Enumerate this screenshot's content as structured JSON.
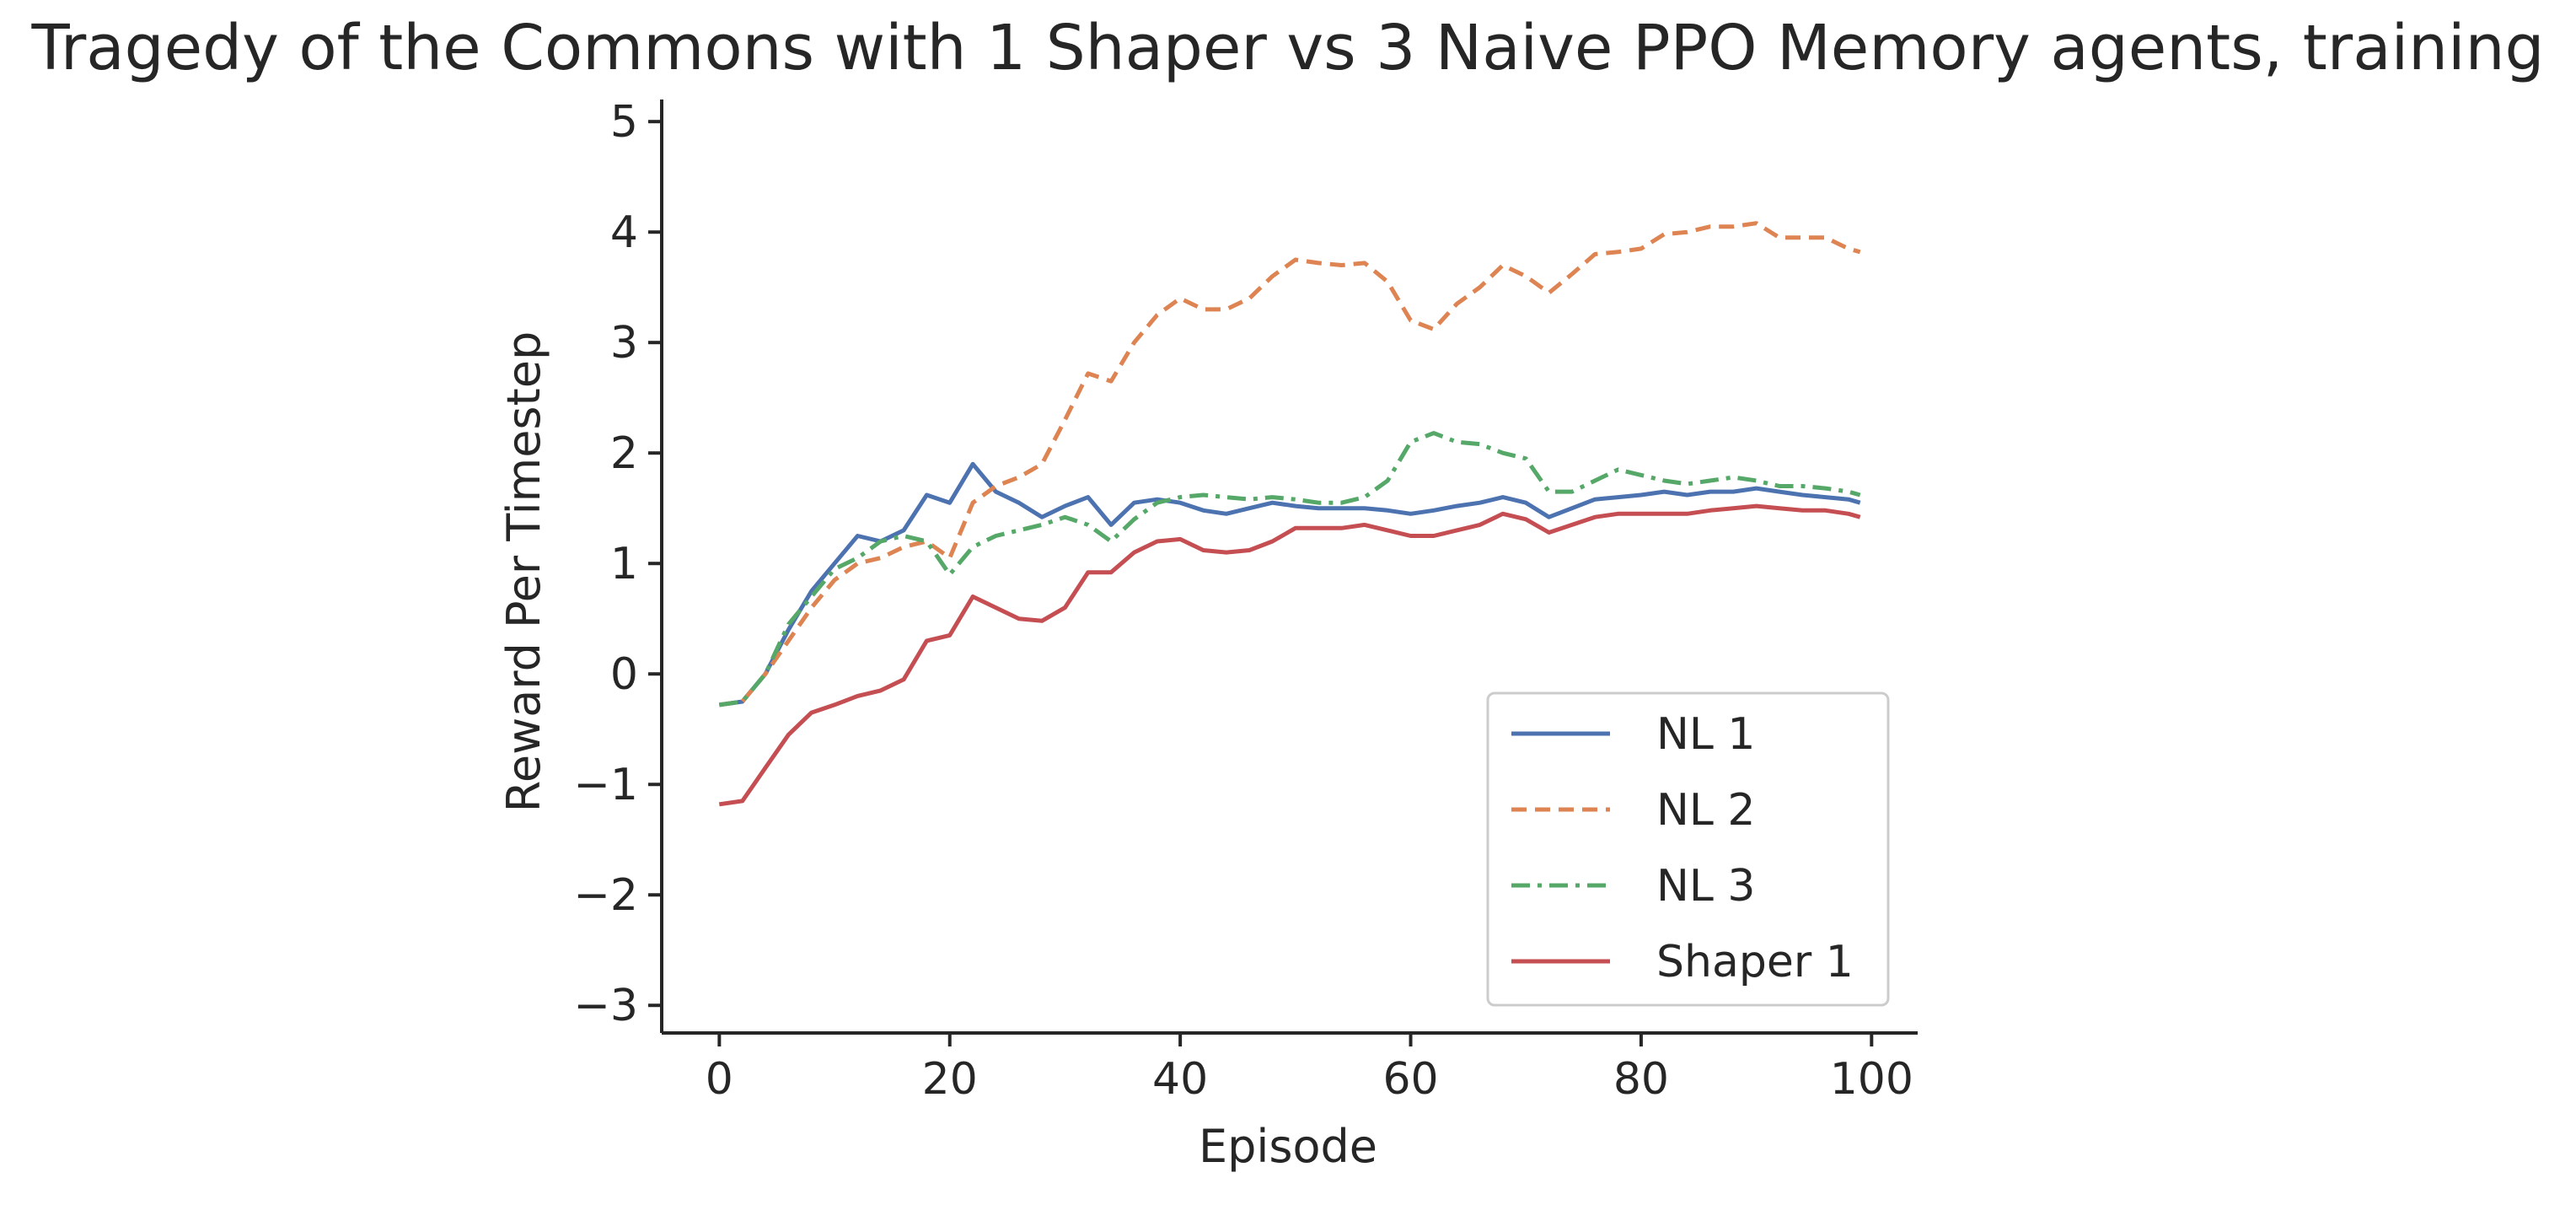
{
  "chart_data": {
    "type": "line",
    "title": "Tragedy of the Commons with 1 Shaper vs 3 Naive PPO Memory agents, training",
    "xlabel": "Episode",
    "ylabel": "Reward Per Timestep",
    "xlim": [
      -5,
      104
    ],
    "ylim": [
      -3.25,
      5.2
    ],
    "xticks": [
      0,
      20,
      40,
      60,
      80,
      100
    ],
    "yticks": [
      -3,
      -2,
      -1,
      0,
      1,
      2,
      3,
      4,
      5
    ],
    "grid": false,
    "legend_position": "lower right",
    "x": [
      0,
      2,
      4,
      6,
      8,
      10,
      12,
      14,
      16,
      18,
      20,
      22,
      24,
      26,
      28,
      30,
      32,
      34,
      36,
      38,
      40,
      42,
      44,
      46,
      48,
      50,
      52,
      54,
      56,
      58,
      60,
      62,
      64,
      66,
      68,
      70,
      72,
      74,
      76,
      78,
      80,
      82,
      84,
      86,
      88,
      90,
      92,
      94,
      96,
      98,
      99
    ],
    "series": [
      {
        "name": "NL 1",
        "color": "#4c72b0",
        "dash": "solid",
        "values": [
          -0.28,
          -0.25,
          0.0,
          0.4,
          0.75,
          1.0,
          1.25,
          1.2,
          1.3,
          1.62,
          1.55,
          1.9,
          1.65,
          1.55,
          1.42,
          1.52,
          1.6,
          1.35,
          1.55,
          1.58,
          1.55,
          1.48,
          1.45,
          1.5,
          1.55,
          1.52,
          1.5,
          1.5,
          1.5,
          1.48,
          1.45,
          1.48,
          1.52,
          1.55,
          1.6,
          1.55,
          1.42,
          1.5,
          1.58,
          1.6,
          1.62,
          1.65,
          1.62,
          1.65,
          1.65,
          1.68,
          1.65,
          1.62,
          1.6,
          1.58,
          1.55
        ]
      },
      {
        "name": "NL 2",
        "color": "#dd8452",
        "dash": "dashed",
        "values": [
          -0.28,
          -0.25,
          0.0,
          0.3,
          0.6,
          0.85,
          1.0,
          1.05,
          1.15,
          1.2,
          1.05,
          1.55,
          1.7,
          1.78,
          1.9,
          2.3,
          2.72,
          2.65,
          3.0,
          3.25,
          3.4,
          3.3,
          3.3,
          3.4,
          3.6,
          3.75,
          3.72,
          3.7,
          3.72,
          3.55,
          3.2,
          3.12,
          3.35,
          3.5,
          3.7,
          3.6,
          3.45,
          3.62,
          3.8,
          3.82,
          3.85,
          3.98,
          4.0,
          4.05,
          4.05,
          4.08,
          3.95,
          3.95,
          3.95,
          3.85,
          3.82
        ]
      },
      {
        "name": "NL 3",
        "color": "#55a868",
        "dash": "dashdot",
        "values": [
          -0.28,
          -0.25,
          0.0,
          0.45,
          0.7,
          0.95,
          1.05,
          1.2,
          1.25,
          1.2,
          0.9,
          1.15,
          1.25,
          1.3,
          1.35,
          1.42,
          1.35,
          1.2,
          1.4,
          1.55,
          1.6,
          1.62,
          1.6,
          1.58,
          1.6,
          1.58,
          1.55,
          1.55,
          1.6,
          1.75,
          2.1,
          2.18,
          2.1,
          2.08,
          2.0,
          1.95,
          1.65,
          1.65,
          1.75,
          1.85,
          1.8,
          1.75,
          1.72,
          1.75,
          1.78,
          1.75,
          1.7,
          1.7,
          1.68,
          1.65,
          1.62
        ]
      },
      {
        "name": "Shaper 1",
        "color": "#c44e52",
        "dash": "solid",
        "values": [
          -1.18,
          -1.15,
          -0.85,
          -0.55,
          -0.35,
          -0.28,
          -0.2,
          -0.15,
          -0.05,
          0.3,
          0.35,
          0.7,
          0.6,
          0.5,
          0.48,
          0.6,
          0.92,
          0.92,
          1.1,
          1.2,
          1.22,
          1.12,
          1.1,
          1.12,
          1.2,
          1.32,
          1.32,
          1.32,
          1.35,
          1.3,
          1.25,
          1.25,
          1.3,
          1.35,
          1.45,
          1.4,
          1.28,
          1.35,
          1.42,
          1.45,
          1.45,
          1.45,
          1.45,
          1.48,
          1.5,
          1.52,
          1.5,
          1.48,
          1.48,
          1.45,
          1.42
        ]
      }
    ]
  }
}
